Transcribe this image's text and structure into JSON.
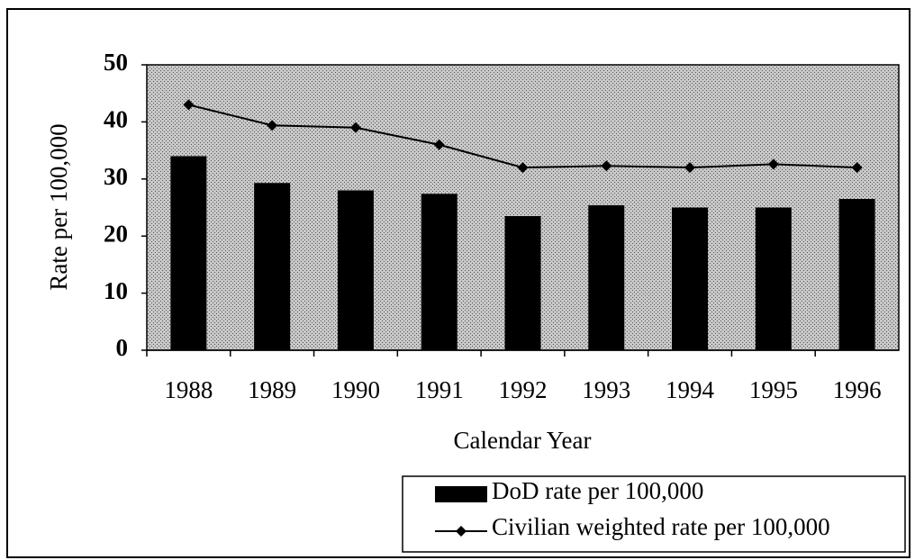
{
  "chart_data": {
    "type": "bar",
    "x_label": "Calendar Year",
    "y_label": "Rate per 100,000",
    "categories": [
      "1988",
      "1989",
      "1990",
      "1991",
      "1992",
      "1993",
      "1994",
      "1995",
      "1996"
    ],
    "series": [
      {
        "name": "DoD rate per 100,000",
        "type": "bar",
        "color": "#000000",
        "values": [
          34,
          29.3,
          28,
          27.4,
          23.5,
          25.4,
          25,
          25,
          26.5
        ]
      },
      {
        "name": "Civilian weighted rate per 100,000",
        "type": "line",
        "color": "#000000",
        "values": [
          43,
          39.4,
          39,
          36,
          32,
          32.3,
          32,
          32.6,
          32
        ]
      }
    ],
    "ylim": [
      0,
      50
    ],
    "yticks": [
      0,
      10,
      20,
      30,
      40,
      50
    ],
    "legend": "lower right"
  }
}
